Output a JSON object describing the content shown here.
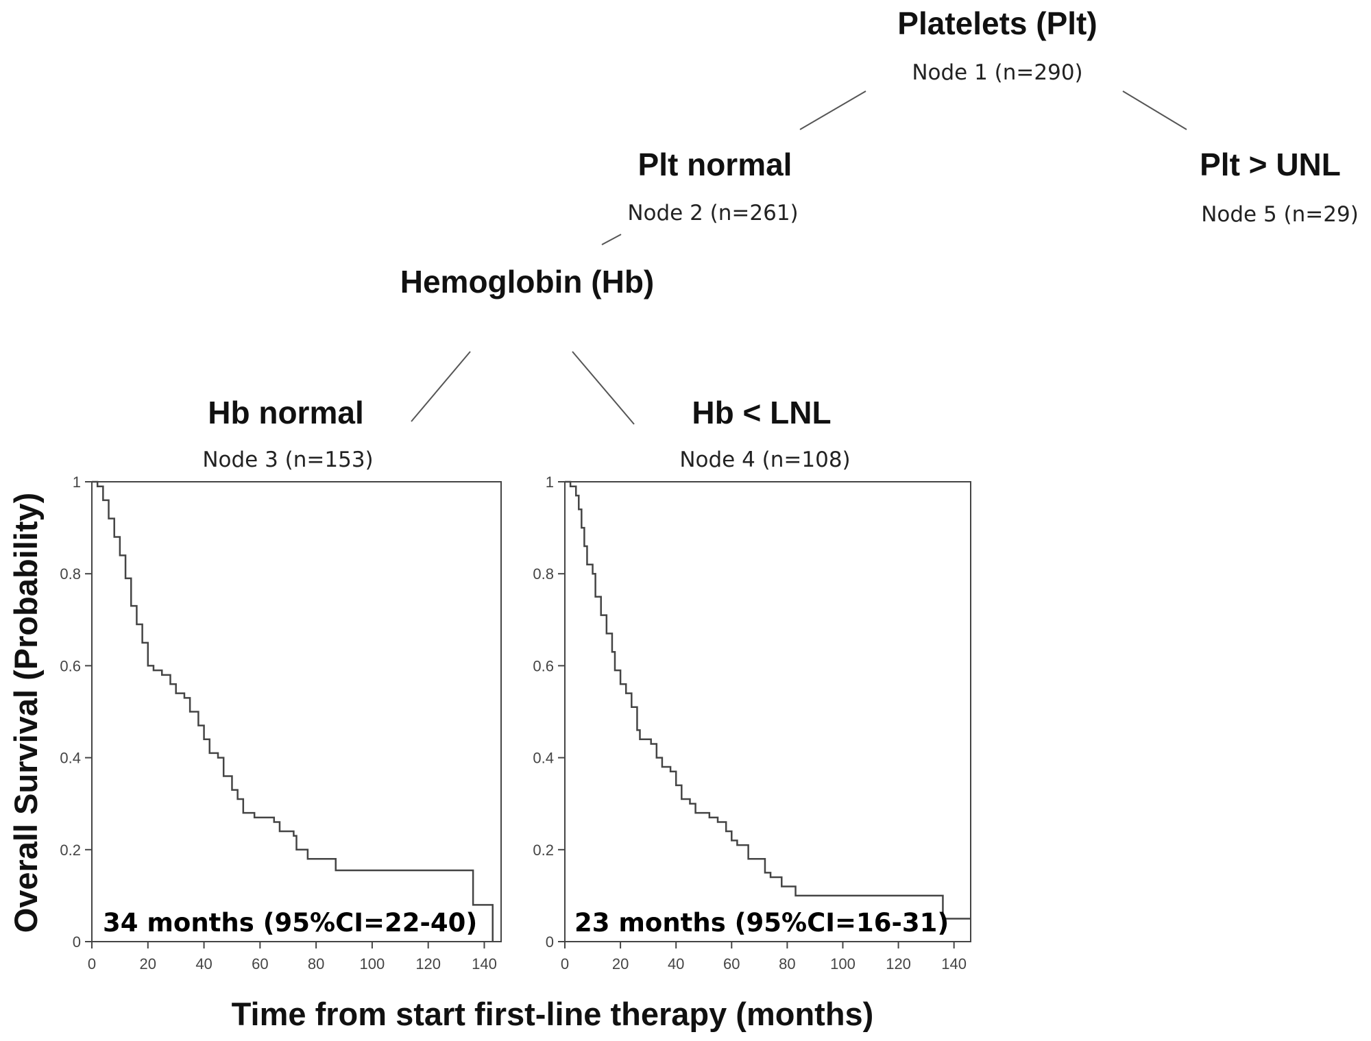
{
  "tree": {
    "node1": {
      "title": "Platelets (Plt)",
      "label": "Node 1 (n=290)"
    },
    "node2": {
      "title": "Plt normal",
      "label": "Node 2 (n=261)"
    },
    "node2_split": {
      "title": "Hemoglobin (Hb)"
    },
    "node5": {
      "title": "Plt > UNL",
      "label": "Node 5 (n=29)"
    },
    "node3": {
      "title": "Hb normal",
      "label": "Node 3 (n=153)"
    },
    "node4": {
      "title": "Hb < LNL",
      "label": "Node 4 (n=108)"
    }
  },
  "chart_data": [
    {
      "type": "line",
      "step": true,
      "node": "Node 3 (n=153)",
      "annotation": "34 months (95%CI=22-40)",
      "xlabel": "Time from start first-line therapy (months)",
      "ylabel": "Overall Survival (Probability)",
      "xlim": [
        0,
        146
      ],
      "ylim": [
        0,
        1
      ],
      "xticks": [
        0,
        20,
        40,
        60,
        80,
        100,
        120,
        140
      ],
      "yticks": [
        0,
        0.2,
        0.4,
        0.6,
        0.8,
        1
      ],
      "ytick_labels": [
        "0",
        "0.2",
        "0.4",
        "0.6",
        "0.8",
        "1"
      ],
      "grid": false,
      "color": "#444444",
      "x": [
        0,
        2,
        4,
        6,
        8,
        10,
        12,
        14,
        16,
        18,
        20,
        22,
        25,
        28,
        30,
        33,
        35,
        38,
        40,
        42,
        45,
        47,
        50,
        52,
        54,
        58,
        65,
        67,
        72,
        73,
        77,
        87,
        136,
        143
      ],
      "y": [
        1,
        0.99,
        0.96,
        0.92,
        0.88,
        0.84,
        0.79,
        0.73,
        0.69,
        0.65,
        0.6,
        0.59,
        0.58,
        0.56,
        0.54,
        0.53,
        0.5,
        0.47,
        0.44,
        0.41,
        0.4,
        0.36,
        0.33,
        0.31,
        0.28,
        0.27,
        0.26,
        0.24,
        0.23,
        0.2,
        0.18,
        0.155,
        0.08,
        0
      ]
    },
    {
      "type": "line",
      "step": true,
      "node": "Node 4 (n=108)",
      "annotation": "23 months (95%CI=16-31)",
      "xlim": [
        0,
        146
      ],
      "ylim": [
        0,
        1
      ],
      "xticks": [
        0,
        20,
        40,
        60,
        80,
        100,
        120,
        140
      ],
      "yticks": [
        0,
        0.2,
        0.4,
        0.6,
        0.8,
        1
      ],
      "ytick_labels": [
        "0",
        "0.2",
        "0.4",
        "0.6",
        "0.8",
        "1"
      ],
      "grid": false,
      "color": "#444444",
      "x": [
        0,
        2,
        4,
        5,
        6,
        7,
        8,
        10,
        11,
        13,
        15,
        17,
        18,
        20,
        22,
        24,
        26,
        27,
        31,
        33,
        35,
        38,
        40,
        42,
        45,
        47,
        52,
        55,
        58,
        60,
        62,
        66,
        72,
        74,
        78,
        83,
        136,
        146
      ],
      "y": [
        1,
        0.99,
        0.97,
        0.94,
        0.9,
        0.86,
        0.82,
        0.8,
        0.75,
        0.71,
        0.67,
        0.63,
        0.59,
        0.56,
        0.54,
        0.51,
        0.46,
        0.44,
        0.43,
        0.4,
        0.38,
        0.37,
        0.34,
        0.31,
        0.3,
        0.28,
        0.27,
        0.26,
        0.24,
        0.22,
        0.21,
        0.18,
        0.15,
        0.14,
        0.12,
        0.1,
        0.05,
        0.05
      ]
    }
  ]
}
